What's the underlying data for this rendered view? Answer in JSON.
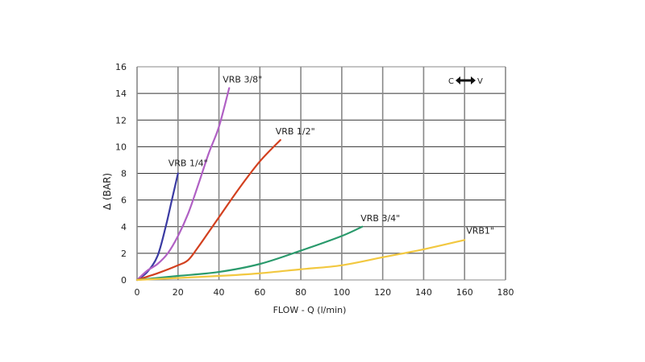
{
  "chart_data": {
    "type": "line",
    "title": "",
    "xlabel": "FLOW - Q (l/min)",
    "ylabel": "Δ (BAR)",
    "xlim": [
      0,
      180
    ],
    "ylim": [
      0,
      16
    ],
    "xticks": [
      0,
      20,
      40,
      60,
      80,
      100,
      120,
      140,
      160,
      180
    ],
    "yticks": [
      0,
      2,
      4,
      6,
      8,
      10,
      12,
      14,
      16
    ],
    "grid": true,
    "annotation": {
      "left": "C",
      "right": "V",
      "icon": "double-arrow-icon"
    },
    "series": [
      {
        "name": "VRB 1/4\"",
        "color": "#3b3ba3",
        "x": [
          0,
          5,
          10,
          14,
          17,
          20
        ],
        "y": [
          0,
          0.6,
          1.8,
          4,
          6,
          8
        ]
      },
      {
        "name": "VRB 3/8\"",
        "color": "#b060c4",
        "x": [
          0,
          5,
          10,
          15,
          20,
          25,
          30,
          35,
          40,
          45
        ],
        "y": [
          0,
          0.7,
          1.2,
          2,
          3.3,
          5,
          7.2,
          9.5,
          11.5,
          14.4
        ]
      },
      {
        "name": "VRB 1/2\"",
        "color": "#d2401f",
        "x": [
          0,
          10,
          20,
          25,
          30,
          40,
          50,
          60,
          70
        ],
        "y": [
          0,
          0.5,
          1.1,
          1.5,
          2.5,
          4.7,
          6.9,
          8.9,
          10.5
        ]
      },
      {
        "name": "VRB 3/4\"",
        "color": "#2a9a6c",
        "x": [
          0,
          20,
          40,
          60,
          80,
          100,
          110
        ],
        "y": [
          0,
          0.3,
          0.6,
          1.2,
          2.2,
          3.3,
          4.0
        ]
      },
      {
        "name": "VRB1\"",
        "color": "#f2c840",
        "x": [
          0,
          40,
          60,
          80,
          100,
          120,
          140,
          160
        ],
        "y": [
          0,
          0.3,
          0.5,
          0.8,
          1.1,
          1.7,
          2.3,
          3.0
        ]
      }
    ]
  }
}
